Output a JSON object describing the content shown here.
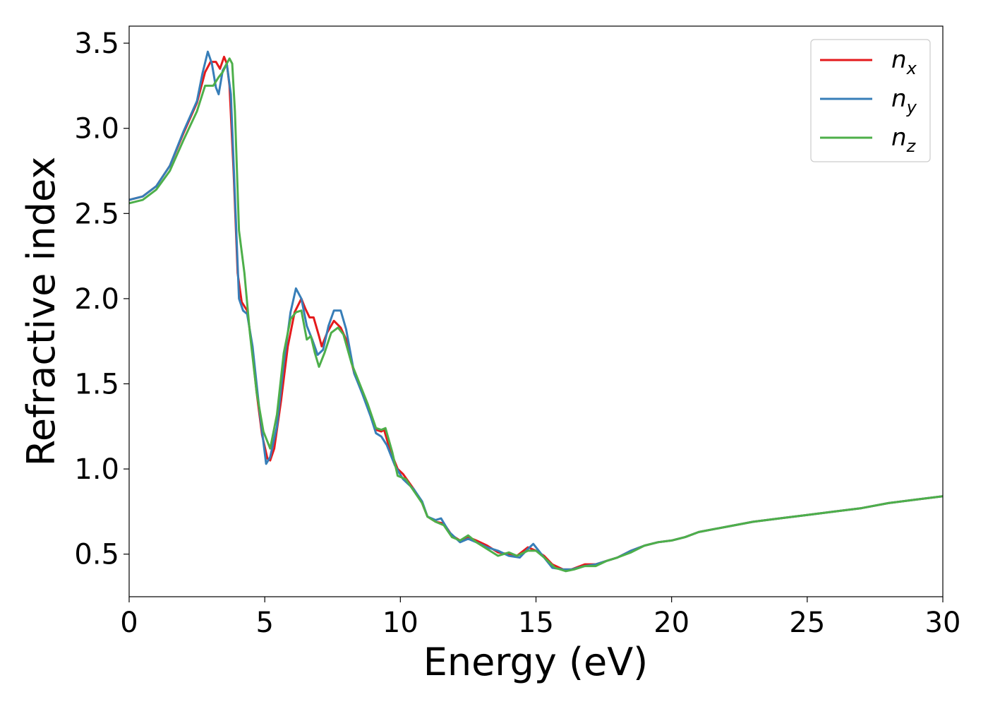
{
  "chart_data": {
    "type": "line",
    "title": "",
    "xlabel": "Energy (eV)",
    "ylabel": "Refractive index",
    "xlim": [
      0,
      30
    ],
    "ylim": [
      0.25,
      3.6
    ],
    "xticks": [
      0,
      5,
      10,
      15,
      20,
      25,
      30
    ],
    "xtick_labels": [
      "0",
      "5",
      "10",
      "15",
      "20",
      "25",
      "30"
    ],
    "yticks": [
      0.5,
      1.0,
      1.5,
      2.0,
      2.5,
      3.0,
      3.5
    ],
    "ytick_labels": [
      "0.5",
      "1.0",
      "1.5",
      "2.0",
      "2.5",
      "3.0",
      "3.5"
    ],
    "grid": false,
    "legend_position": "top-right",
    "series": [
      {
        "name": "n_x",
        "label_base": "n",
        "label_sub": "x",
        "color": "#e41a1c",
        "points": [
          [
            0,
            2.58
          ],
          [
            0.5,
            2.6
          ],
          [
            1.0,
            2.66
          ],
          [
            1.5,
            2.78
          ],
          [
            2.0,
            2.97
          ],
          [
            2.5,
            3.15
          ],
          [
            2.8,
            3.33
          ],
          [
            3.0,
            3.39
          ],
          [
            3.2,
            3.39
          ],
          [
            3.35,
            3.35
          ],
          [
            3.5,
            3.42
          ],
          [
            3.6,
            3.38
          ],
          [
            3.7,
            3.25
          ],
          [
            3.85,
            2.75
          ],
          [
            4.0,
            2.15
          ],
          [
            4.15,
            1.98
          ],
          [
            4.35,
            1.93
          ],
          [
            4.5,
            1.75
          ],
          [
            4.7,
            1.45
          ],
          [
            4.9,
            1.2
          ],
          [
            5.1,
            1.06
          ],
          [
            5.2,
            1.05
          ],
          [
            5.35,
            1.12
          ],
          [
            5.6,
            1.4
          ],
          [
            5.85,
            1.72
          ],
          [
            6.1,
            1.92
          ],
          [
            6.35,
            2.0
          ],
          [
            6.5,
            1.94
          ],
          [
            6.65,
            1.89
          ],
          [
            6.8,
            1.89
          ],
          [
            7.0,
            1.78
          ],
          [
            7.1,
            1.72
          ],
          [
            7.3,
            1.8
          ],
          [
            7.55,
            1.87
          ],
          [
            7.8,
            1.83
          ],
          [
            8.0,
            1.76
          ],
          [
            8.3,
            1.56
          ],
          [
            8.6,
            1.45
          ],
          [
            8.9,
            1.33
          ],
          [
            9.1,
            1.23
          ],
          [
            9.3,
            1.22
          ],
          [
            9.4,
            1.23
          ],
          [
            9.6,
            1.12
          ],
          [
            9.9,
            1.0
          ],
          [
            10.1,
            0.97
          ],
          [
            10.5,
            0.88
          ],
          [
            10.8,
            0.8
          ],
          [
            11.0,
            0.72
          ],
          [
            11.3,
            0.69
          ],
          [
            11.6,
            0.68
          ],
          [
            11.9,
            0.61
          ],
          [
            12.2,
            0.58
          ],
          [
            12.5,
            0.6
          ],
          [
            12.8,
            0.58
          ],
          [
            13.2,
            0.55
          ],
          [
            13.6,
            0.51
          ],
          [
            14.0,
            0.5
          ],
          [
            14.3,
            0.49
          ],
          [
            14.7,
            0.54
          ],
          [
            15.0,
            0.52
          ],
          [
            15.3,
            0.49
          ],
          [
            15.6,
            0.44
          ],
          [
            16.0,
            0.41
          ],
          [
            16.3,
            0.41
          ],
          [
            16.8,
            0.44
          ],
          [
            17.2,
            0.44
          ],
          [
            17.6,
            0.46
          ],
          [
            18.0,
            0.48
          ],
          [
            18.5,
            0.52
          ],
          [
            19.0,
            0.55
          ],
          [
            19.5,
            0.57
          ],
          [
            20.0,
            0.58
          ],
          [
            20.5,
            0.6
          ],
          [
            21.0,
            0.63
          ],
          [
            22.0,
            0.66
          ],
          [
            23.0,
            0.69
          ],
          [
            24.0,
            0.71
          ],
          [
            25.0,
            0.73
          ],
          [
            26.0,
            0.75
          ],
          [
            27.0,
            0.77
          ],
          [
            28.0,
            0.8
          ],
          [
            29.0,
            0.82
          ],
          [
            30.0,
            0.84
          ]
        ]
      },
      {
        "name": "n_y",
        "label_base": "n",
        "label_sub": "y",
        "color": "#377eb8",
        "points": [
          [
            0,
            2.58
          ],
          [
            0.5,
            2.6
          ],
          [
            1.0,
            2.66
          ],
          [
            1.5,
            2.78
          ],
          [
            2.0,
            2.98
          ],
          [
            2.5,
            3.16
          ],
          [
            2.7,
            3.32
          ],
          [
            2.9,
            3.45
          ],
          [
            3.05,
            3.38
          ],
          [
            3.2,
            3.24
          ],
          [
            3.3,
            3.2
          ],
          [
            3.45,
            3.34
          ],
          [
            3.6,
            3.38
          ],
          [
            3.75,
            3.2
          ],
          [
            3.9,
            2.6
          ],
          [
            4.05,
            2.0
          ],
          [
            4.2,
            1.93
          ],
          [
            4.35,
            1.91
          ],
          [
            4.55,
            1.72
          ],
          [
            4.8,
            1.35
          ],
          [
            5.05,
            1.03
          ],
          [
            5.2,
            1.07
          ],
          [
            5.45,
            1.25
          ],
          [
            5.7,
            1.62
          ],
          [
            5.95,
            1.92
          ],
          [
            6.15,
            2.06
          ],
          [
            6.35,
            2.0
          ],
          [
            6.55,
            1.84
          ],
          [
            6.75,
            1.76
          ],
          [
            6.95,
            1.67
          ],
          [
            7.15,
            1.7
          ],
          [
            7.35,
            1.84
          ],
          [
            7.55,
            1.93
          ],
          [
            7.8,
            1.93
          ],
          [
            8.0,
            1.82
          ],
          [
            8.3,
            1.56
          ],
          [
            8.6,
            1.44
          ],
          [
            8.9,
            1.31
          ],
          [
            9.1,
            1.21
          ],
          [
            9.3,
            1.19
          ],
          [
            9.5,
            1.14
          ],
          [
            9.8,
            1.02
          ],
          [
            10.1,
            0.94
          ],
          [
            10.5,
            0.88
          ],
          [
            10.8,
            0.81
          ],
          [
            11.0,
            0.72
          ],
          [
            11.3,
            0.7
          ],
          [
            11.5,
            0.71
          ],
          [
            11.8,
            0.63
          ],
          [
            12.2,
            0.57
          ],
          [
            12.5,
            0.59
          ],
          [
            12.8,
            0.57
          ],
          [
            13.2,
            0.54
          ],
          [
            13.6,
            0.52
          ],
          [
            14.0,
            0.49
          ],
          [
            14.4,
            0.48
          ],
          [
            14.7,
            0.53
          ],
          [
            14.9,
            0.56
          ],
          [
            15.2,
            0.5
          ],
          [
            15.6,
            0.42
          ],
          [
            16.0,
            0.41
          ],
          [
            16.3,
            0.41
          ],
          [
            16.8,
            0.43
          ],
          [
            17.2,
            0.44
          ],
          [
            17.6,
            0.46
          ],
          [
            18.0,
            0.48
          ],
          [
            18.5,
            0.52
          ],
          [
            19.0,
            0.55
          ],
          [
            19.5,
            0.57
          ],
          [
            20.0,
            0.58
          ],
          [
            20.5,
            0.6
          ],
          [
            21.0,
            0.63
          ],
          [
            22.0,
            0.66
          ],
          [
            23.0,
            0.69
          ],
          [
            24.0,
            0.71
          ],
          [
            25.0,
            0.73
          ],
          [
            26.0,
            0.75
          ],
          [
            27.0,
            0.77
          ],
          [
            28.0,
            0.8
          ],
          [
            29.0,
            0.82
          ],
          [
            30.0,
            0.84
          ]
        ]
      },
      {
        "name": "n_z",
        "label_base": "n",
        "label_sub": "z",
        "color": "#4daf4a",
        "points": [
          [
            0,
            2.56
          ],
          [
            0.5,
            2.58
          ],
          [
            1.0,
            2.64
          ],
          [
            1.5,
            2.75
          ],
          [
            2.0,
            2.93
          ],
          [
            2.5,
            3.1
          ],
          [
            2.8,
            3.25
          ],
          [
            3.1,
            3.25
          ],
          [
            3.3,
            3.3
          ],
          [
            3.45,
            3.33
          ],
          [
            3.6,
            3.38
          ],
          [
            3.7,
            3.41
          ],
          [
            3.8,
            3.38
          ],
          [
            3.9,
            3.1
          ],
          [
            4.05,
            2.4
          ],
          [
            4.25,
            2.15
          ],
          [
            4.45,
            1.8
          ],
          [
            4.7,
            1.45
          ],
          [
            4.95,
            1.22
          ],
          [
            5.2,
            1.12
          ],
          [
            5.45,
            1.32
          ],
          [
            5.7,
            1.68
          ],
          [
            5.95,
            1.88
          ],
          [
            6.15,
            1.92
          ],
          [
            6.35,
            1.93
          ],
          [
            6.55,
            1.76
          ],
          [
            6.7,
            1.78
          ],
          [
            6.85,
            1.68
          ],
          [
            7.0,
            1.6
          ],
          [
            7.2,
            1.68
          ],
          [
            7.45,
            1.8
          ],
          [
            7.7,
            1.83
          ],
          [
            7.9,
            1.79
          ],
          [
            8.2,
            1.62
          ],
          [
            8.5,
            1.5
          ],
          [
            8.8,
            1.38
          ],
          [
            9.1,
            1.24
          ],
          [
            9.3,
            1.23
          ],
          [
            9.45,
            1.24
          ],
          [
            9.7,
            1.1
          ],
          [
            9.9,
            0.96
          ],
          [
            10.2,
            0.94
          ],
          [
            10.5,
            0.87
          ],
          [
            10.8,
            0.8
          ],
          [
            11.0,
            0.72
          ],
          [
            11.3,
            0.69
          ],
          [
            11.6,
            0.67
          ],
          [
            11.9,
            0.6
          ],
          [
            12.2,
            0.58
          ],
          [
            12.5,
            0.61
          ],
          [
            12.8,
            0.57
          ],
          [
            13.2,
            0.53
          ],
          [
            13.6,
            0.49
          ],
          [
            14.0,
            0.51
          ],
          [
            14.3,
            0.49
          ],
          [
            14.7,
            0.52
          ],
          [
            15.0,
            0.52
          ],
          [
            15.3,
            0.48
          ],
          [
            15.7,
            0.42
          ],
          [
            16.1,
            0.4
          ],
          [
            16.4,
            0.41
          ],
          [
            16.8,
            0.43
          ],
          [
            17.2,
            0.43
          ],
          [
            17.6,
            0.46
          ],
          [
            18.0,
            0.48
          ],
          [
            18.5,
            0.51
          ],
          [
            19.0,
            0.55
          ],
          [
            19.5,
            0.57
          ],
          [
            20.0,
            0.58
          ],
          [
            20.5,
            0.6
          ],
          [
            21.0,
            0.63
          ],
          [
            22.0,
            0.66
          ],
          [
            23.0,
            0.69
          ],
          [
            24.0,
            0.71
          ],
          [
            25.0,
            0.73
          ],
          [
            26.0,
            0.75
          ],
          [
            27.0,
            0.77
          ],
          [
            28.0,
            0.8
          ],
          [
            29.0,
            0.82
          ],
          [
            30.0,
            0.84
          ]
        ]
      }
    ]
  }
}
